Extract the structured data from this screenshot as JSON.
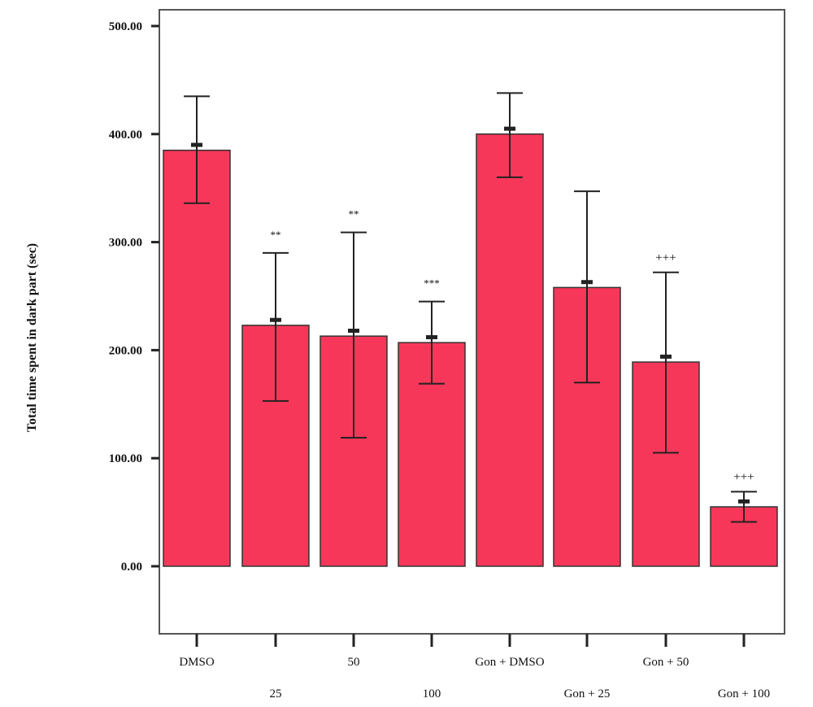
{
  "chart_data": {
    "type": "bar",
    "categories": [
      "DMSO",
      "25",
      "50",
      "100",
      "Gon + DMSO",
      "Gon + 25",
      "Gon + 50",
      "Gon + 100"
    ],
    "values": [
      385,
      223,
      213,
      207,
      400,
      258,
      189,
      55
    ],
    "error_upper": [
      435,
      290,
      309,
      245,
      438,
      347,
      272,
      69
    ],
    "error_lower": [
      336,
      153,
      119,
      169,
      360,
      170,
      105,
      41
    ],
    "annotations": [
      "",
      "**",
      "**",
      "***",
      "",
      "",
      "+++",
      "+++"
    ],
    "ylabel": "Total time spent in dark part (sec)",
    "yticks": [
      "0.00",
      "100.00",
      "200.00",
      "300.00",
      "400.00",
      "500.00"
    ],
    "ylim": [
      -60,
      520
    ],
    "bar_color": "#f7375a",
    "grid": false,
    "legend": "none"
  }
}
